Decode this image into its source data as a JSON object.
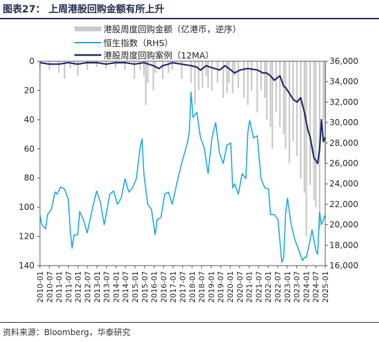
{
  "figure": {
    "title": "图表27：  上周港股回购金额有所上升",
    "source": "资料来源：Bloomberg，华泰研究"
  },
  "chart_data": {
    "type": "line",
    "left_axis": {
      "reversed": true,
      "ylim": [
        0,
        140
      ],
      "ticks": [
        0,
        20,
        40,
        60,
        80,
        100,
        120,
        140
      ]
    },
    "right_axis": {
      "ylim": [
        16000,
        36000
      ],
      "ticks": [
        "16,000",
        "18,000",
        "20,000",
        "22,000",
        "24,000",
        "26,000",
        "28,000",
        "30,000",
        "32,000",
        "34,000",
        "36,000"
      ]
    },
    "x_ticks": [
      "2010-01",
      "2010-07",
      "2011-01",
      "2011-07",
      "2012-01",
      "2012-07",
      "2013-01",
      "2013-07",
      "2014-01",
      "2014-07",
      "2015-01",
      "2015-07",
      "2016-01",
      "2016-07",
      "2017-01",
      "2017-07",
      "2018-01",
      "2018-07",
      "2019-01",
      "2019-07",
      "2020-01",
      "2020-07",
      "2021-01",
      "2021-07",
      "2022-01",
      "2022-07",
      "2023-01",
      "2023-07",
      "2024-01",
      "2024-07",
      "2025-01"
    ],
    "legend_position": "top-center",
    "series": [
      {
        "name": "港股周度回购金额（亿港币，逆序）",
        "axis": "left",
        "style": "bar",
        "color": "#c8c8c8",
        "x": [
          2010.0,
          2010.5,
          2011.0,
          2011.3,
          2011.6,
          2011.8,
          2012.0,
          2012.5,
          2013.0,
          2013.5,
          2014.0,
          2014.5,
          2015.0,
          2015.3,
          2015.5,
          2015.6,
          2015.7,
          2016.0,
          2016.1,
          2016.5,
          2016.8,
          2017.0,
          2017.5,
          2018.0,
          2018.2,
          2018.4,
          2018.6,
          2018.8,
          2018.9,
          2019.1,
          2019.4,
          2019.7,
          2019.9,
          2020.0,
          2020.2,
          2020.3,
          2020.5,
          2020.8,
          2021.0,
          2021.2,
          2021.5,
          2021.7,
          2021.9,
          2022.0,
          2022.2,
          2022.3,
          2022.5,
          2022.7,
          2022.9,
          2023.0,
          2023.2,
          2023.4,
          2023.6,
          2023.8,
          2024.0,
          2024.1,
          2024.3,
          2024.5,
          2024.6,
          2024.8,
          2025.0,
          2025.1
        ],
        "values": [
          4,
          6,
          8,
          12,
          5,
          3,
          10,
          6,
          4,
          5,
          5,
          6,
          12,
          6,
          10,
          30,
          15,
          20,
          8,
          12,
          8,
          6,
          12,
          15,
          30,
          20,
          18,
          10,
          18,
          20,
          15,
          25,
          22,
          15,
          22,
          10,
          18,
          25,
          30,
          20,
          35,
          20,
          25,
          40,
          45,
          60,
          35,
          45,
          50,
          60,
          70,
          55,
          65,
          80,
          90,
          120,
          85,
          95,
          100,
          115,
          40,
          70
        ]
      },
      {
        "name": "恒生指数（RHS）",
        "axis": "right",
        "style": "line",
        "color": "#19a7e6",
        "x": [
          2010.0,
          2010.1,
          2010.3,
          2010.4,
          2010.6,
          2010.8,
          2010.9,
          2011.1,
          2011.3,
          2011.5,
          2011.6,
          2011.7,
          2011.8,
          2012.0,
          2012.1,
          2012.3,
          2012.5,
          2012.8,
          2013.0,
          2013.2,
          2013.4,
          2013.5,
          2013.7,
          2013.9,
          2014.1,
          2014.3,
          2014.5,
          2014.7,
          2014.9,
          2015.1,
          2015.3,
          2015.4,
          2015.5,
          2015.7,
          2015.9,
          2016.1,
          2016.2,
          2016.4,
          2016.6,
          2016.8,
          2017.0,
          2017.3,
          2017.5,
          2017.8,
          2017.9,
          2018.0,
          2018.1,
          2018.3,
          2018.5,
          2018.7,
          2018.9,
          2019.1,
          2019.3,
          2019.5,
          2019.7,
          2019.9,
          2020.1,
          2020.2,
          2020.3,
          2020.5,
          2020.7,
          2020.9,
          2021.0,
          2021.1,
          2021.3,
          2021.5,
          2021.7,
          2021.9,
          2022.1,
          2022.2,
          2022.4,
          2022.6,
          2022.8,
          2022.9,
          2023.0,
          2023.1,
          2023.3,
          2023.5,
          2023.7,
          2023.9,
          2024.0,
          2024.1,
          2024.3,
          2024.4,
          2024.6,
          2024.7,
          2024.8,
          2024.9,
          2025.1
        ],
        "values": [
          21000,
          20000,
          19600,
          21000,
          21500,
          23200,
          23000,
          23700,
          23500,
          22500,
          19500,
          17700,
          19000,
          19000,
          21300,
          20500,
          19200,
          21800,
          23300,
          22200,
          20000,
          21000,
          23000,
          23300,
          22000,
          22600,
          24500,
          23200,
          23600,
          24500,
          27500,
          28400,
          25000,
          22000,
          21500,
          19000,
          20500,
          20700,
          23000,
          23200,
          22000,
          24500,
          26000,
          28000,
          29000,
          33000,
          30500,
          31000,
          28500,
          27500,
          25000,
          28500,
          30000,
          27000,
          26000,
          27800,
          28000,
          23600,
          24000,
          23000,
          25000,
          24500,
          29000,
          30200,
          28500,
          28700,
          24500,
          23600,
          23500,
          21000,
          21000,
          20500,
          16300,
          16800,
          21000,
          22600,
          20000,
          18500,
          17500,
          16500,
          16800,
          16800,
          18500,
          19500,
          17500,
          17100,
          21200,
          20000,
          21000
        ]
      },
      {
        "name": "港股周度回购案例（12MA）",
        "axis": "left",
        "style": "line",
        "color": "#1f2a66",
        "x": [
          2010.0,
          2010.5,
          2011.0,
          2011.5,
          2012.0,
          2012.5,
          2013.0,
          2013.5,
          2014.0,
          2014.5,
          2015.0,
          2015.5,
          2016.0,
          2016.3,
          2016.5,
          2016.8,
          2017.0,
          2017.5,
          2018.0,
          2018.3,
          2018.5,
          2018.8,
          2019.0,
          2019.5,
          2019.8,
          2020.0,
          2020.3,
          2020.6,
          2021.0,
          2021.5,
          2021.8,
          2022.0,
          2022.2,
          2022.4,
          2022.5,
          2022.7,
          2022.9,
          2023.0,
          2023.2,
          2023.4,
          2023.6,
          2023.8,
          2023.9,
          2024.0,
          2024.1,
          2024.2,
          2024.3,
          2024.5,
          2024.6,
          2024.7,
          2024.8,
          2024.9,
          2025.0,
          2025.1
        ],
        "values": [
          1,
          2,
          2,
          1,
          2,
          1,
          1,
          2,
          1,
          1,
          2,
          1,
          3,
          5,
          3,
          2,
          1,
          2,
          3,
          4,
          6,
          3,
          4,
          6,
          3,
          5,
          8,
          6,
          5,
          6,
          8,
          8,
          10,
          13,
          12,
          10,
          17,
          18,
          22,
          26,
          28,
          25,
          30,
          35,
          42,
          48,
          52,
          66,
          68,
          70,
          60,
          40,
          55,
          52
        ]
      }
    ]
  }
}
